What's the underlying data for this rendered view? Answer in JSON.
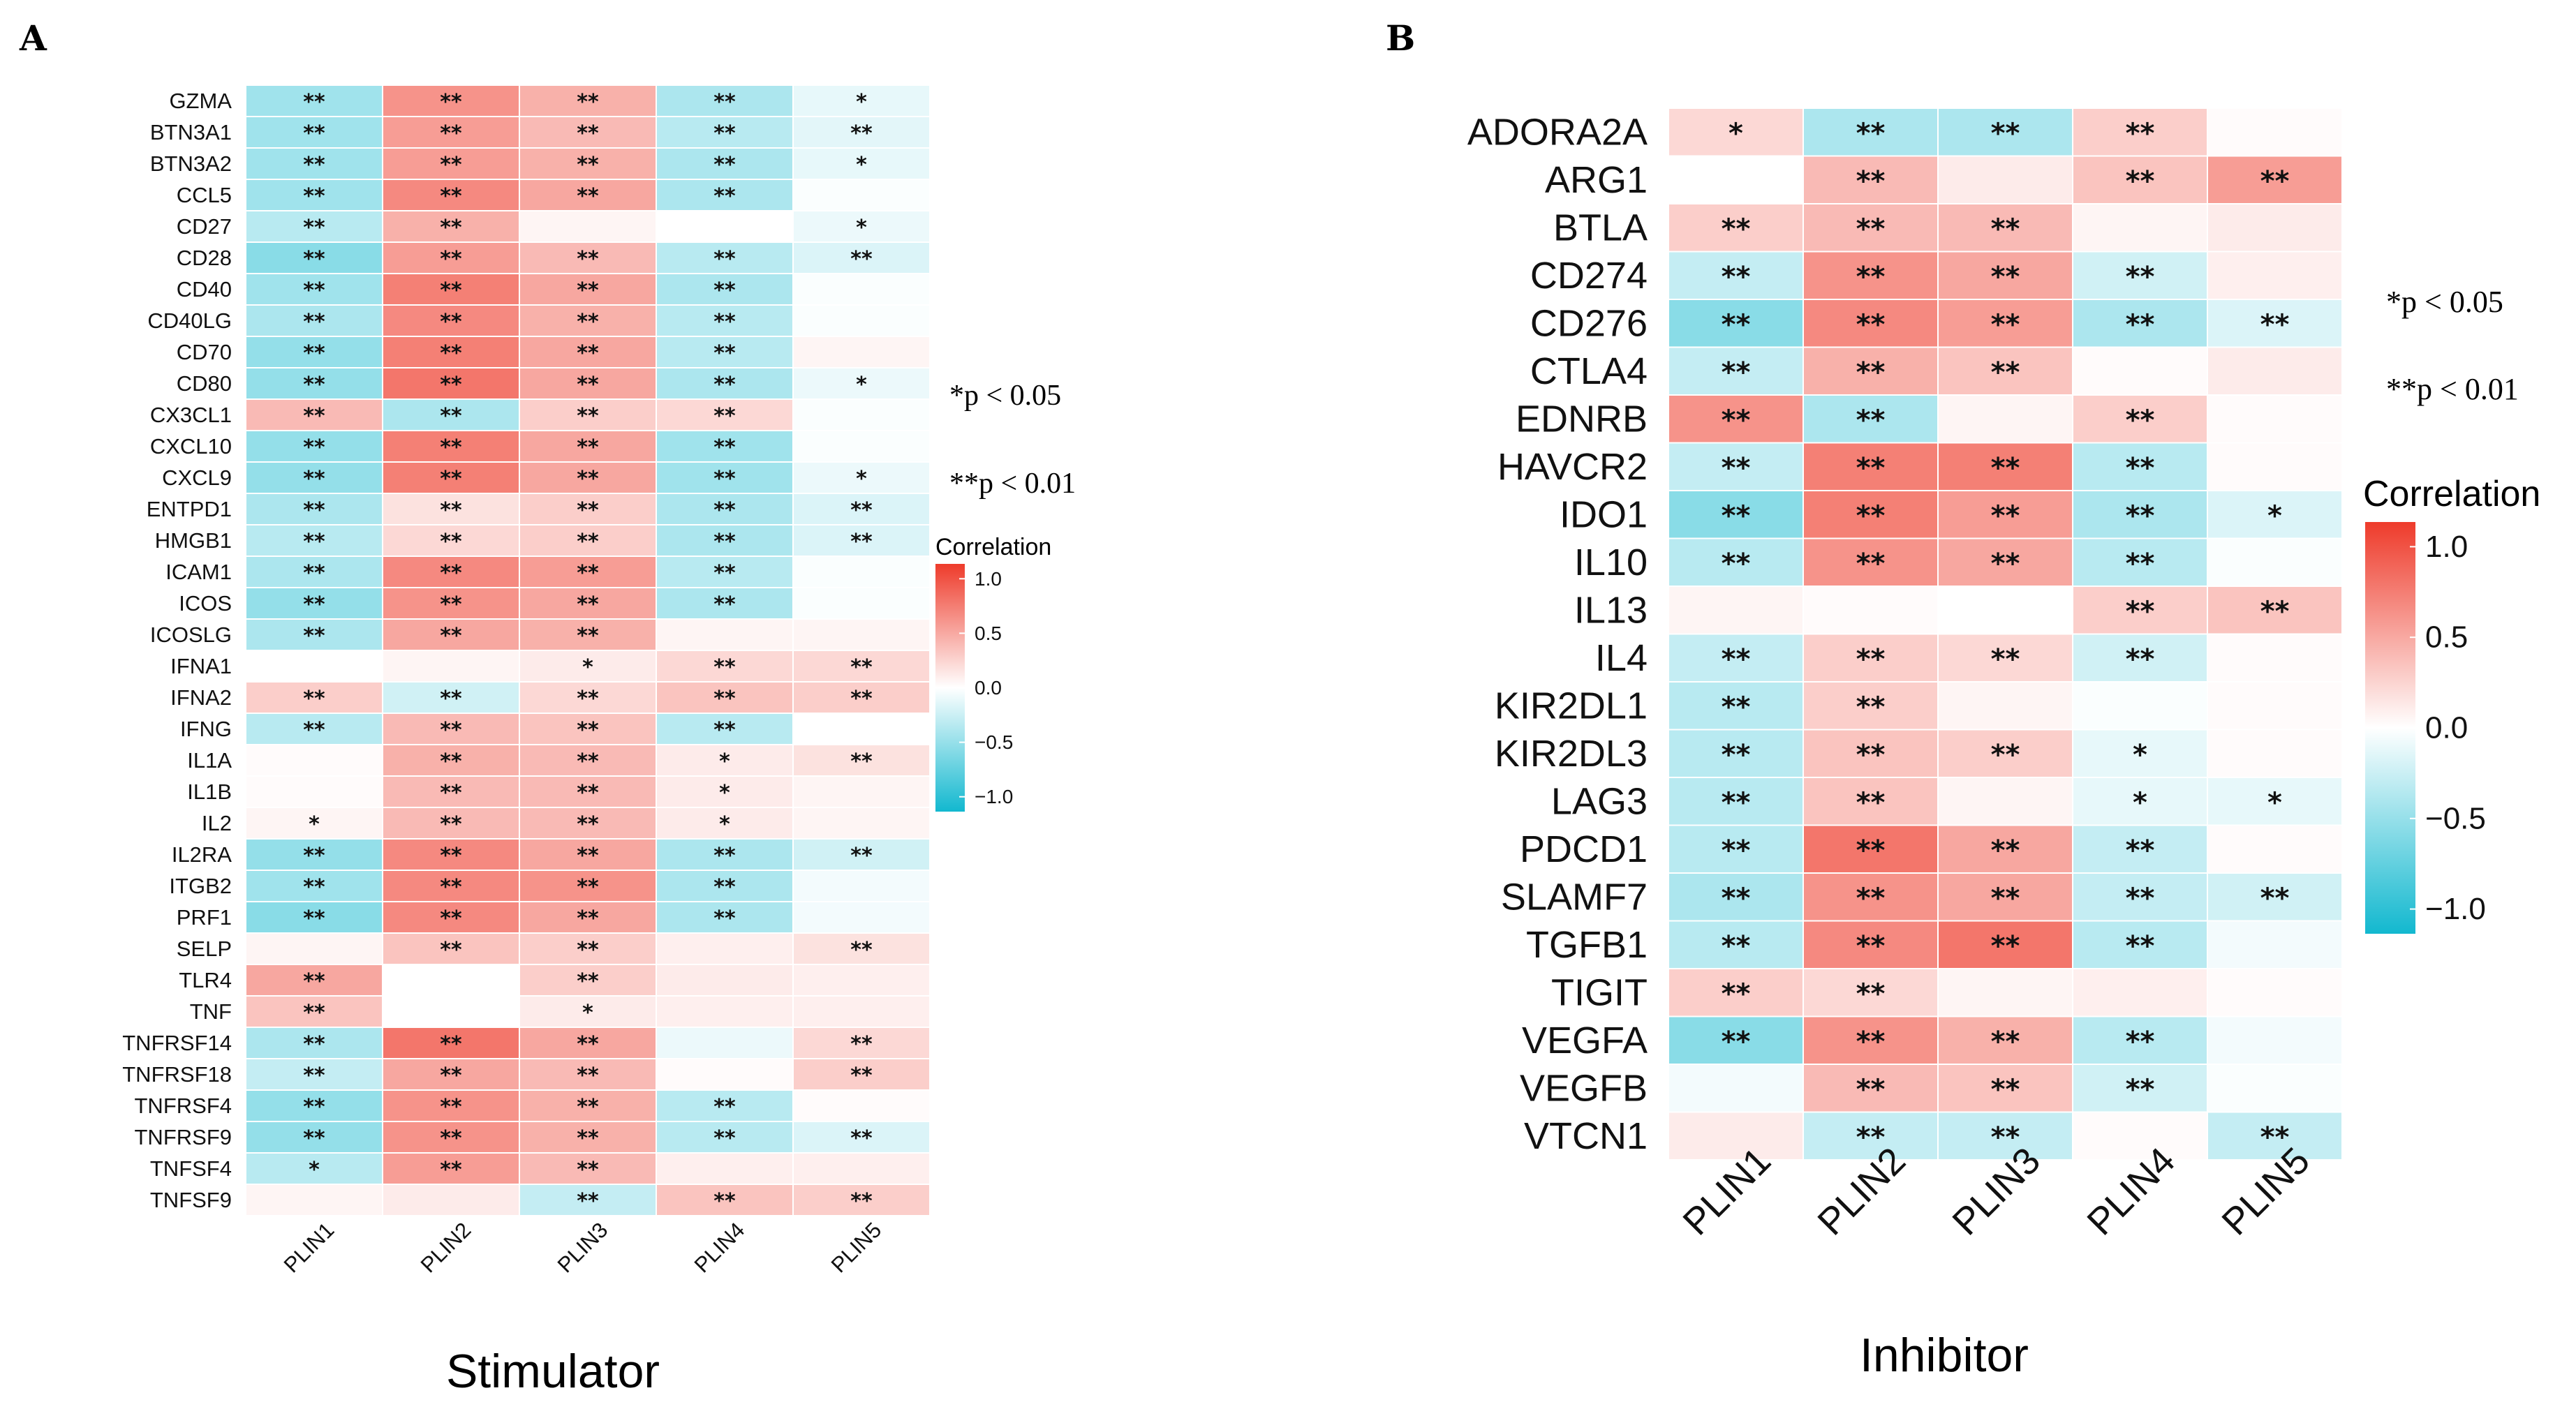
{
  "chart_data": [
    {
      "type": "heatmap",
      "panel_label": "A",
      "xlabel": "Stimulator",
      "columns": [
        "PLIN1",
        "PLIN2",
        "PLIN3",
        "PLIN4",
        "PLIN5"
      ],
      "rows": [
        "GZMA",
        "BTN3A1",
        "BTN3A2",
        "CCL5",
        "CD27",
        "CD28",
        "CD40",
        "CD40LG",
        "CD70",
        "CD80",
        "CX3CL1",
        "CXCL10",
        "CXCL9",
        "ENTPD1",
        "HMGB1",
        "ICAM1",
        "ICOS",
        "ICOSLG",
        "IFNA1",
        "IFNA2",
        "IFNG",
        "IL1A",
        "IL1B",
        "IL2",
        "IL2RA",
        "ITGB2",
        "PRF1",
        "SELP",
        "TLR4",
        "TNF",
        "TNFRSF14",
        "TNFRSF18",
        "TNFRSF4",
        "TNFRSF9",
        "TNFSF4",
        "TNFSF9"
      ],
      "values": [
        [
          -0.4,
          0.55,
          0.4,
          -0.35,
          -0.1
        ],
        [
          -0.4,
          0.5,
          0.35,
          -0.3,
          -0.12
        ],
        [
          -0.4,
          0.5,
          0.4,
          -0.35,
          -0.1
        ],
        [
          -0.4,
          0.6,
          0.45,
          -0.35,
          -0.02
        ],
        [
          -0.3,
          0.4,
          0.05,
          0.0,
          -0.08
        ],
        [
          -0.5,
          0.5,
          0.35,
          -0.3,
          -0.15
        ],
        [
          -0.4,
          0.65,
          0.45,
          -0.35,
          -0.02
        ],
        [
          -0.35,
          0.6,
          0.4,
          -0.3,
          -0.02
        ],
        [
          -0.45,
          0.65,
          0.45,
          -0.3,
          0.05
        ],
        [
          -0.45,
          0.7,
          0.45,
          -0.35,
          -0.08
        ],
        [
          0.35,
          -0.35,
          0.25,
          0.2,
          -0.02
        ],
        [
          -0.45,
          0.65,
          0.45,
          -0.4,
          -0.02
        ],
        [
          -0.45,
          0.65,
          0.45,
          -0.4,
          -0.08
        ],
        [
          -0.35,
          0.15,
          0.25,
          -0.35,
          -0.15
        ],
        [
          -0.3,
          0.2,
          0.25,
          -0.35,
          -0.15
        ],
        [
          -0.35,
          0.6,
          0.5,
          -0.3,
          -0.02
        ],
        [
          -0.45,
          0.55,
          0.45,
          -0.35,
          -0.02
        ],
        [
          -0.35,
          0.45,
          0.4,
          0.05,
          0.05
        ],
        [
          0.0,
          0.05,
          0.1,
          0.2,
          0.2
        ],
        [
          0.25,
          -0.2,
          0.2,
          0.3,
          0.25
        ],
        [
          -0.3,
          0.35,
          0.3,
          -0.3,
          0.0
        ],
        [
          0.02,
          0.4,
          0.35,
          0.1,
          0.15
        ],
        [
          0.02,
          0.35,
          0.35,
          0.1,
          0.05
        ],
        [
          0.05,
          0.35,
          0.35,
          0.1,
          0.05
        ],
        [
          -0.45,
          0.6,
          0.45,
          -0.35,
          -0.2
        ],
        [
          -0.4,
          0.6,
          0.55,
          -0.35,
          -0.05
        ],
        [
          -0.5,
          0.6,
          0.45,
          -0.35,
          -0.05
        ],
        [
          0.05,
          0.3,
          0.25,
          0.08,
          0.15
        ],
        [
          0.45,
          0.0,
          0.25,
          0.1,
          0.08
        ],
        [
          0.3,
          0.0,
          0.1,
          0.08,
          0.08
        ],
        [
          -0.35,
          0.7,
          0.45,
          -0.08,
          0.2
        ],
        [
          -0.25,
          0.45,
          0.35,
          0.02,
          0.25
        ],
        [
          -0.45,
          0.55,
          0.4,
          -0.3,
          0.02
        ],
        [
          -0.45,
          0.55,
          0.4,
          -0.3,
          -0.15
        ],
        [
          -0.3,
          0.5,
          0.35,
          0.08,
          0.08
        ],
        [
          0.05,
          0.1,
          -0.25,
          0.3,
          0.25
        ]
      ],
      "stars": [
        [
          "**",
          "**",
          "**",
          "**",
          "*"
        ],
        [
          "**",
          "**",
          "**",
          "**",
          "**"
        ],
        [
          "**",
          "**",
          "**",
          "**",
          "*"
        ],
        [
          "**",
          "**",
          "**",
          "**",
          ""
        ],
        [
          "**",
          "**",
          "",
          "",
          "*"
        ],
        [
          "**",
          "**",
          "**",
          "**",
          "**"
        ],
        [
          "**",
          "**",
          "**",
          "**",
          ""
        ],
        [
          "**",
          "**",
          "**",
          "**",
          ""
        ],
        [
          "**",
          "**",
          "**",
          "**",
          ""
        ],
        [
          "**",
          "**",
          "**",
          "**",
          "*"
        ],
        [
          "**",
          "**",
          "**",
          "**",
          ""
        ],
        [
          "**",
          "**",
          "**",
          "**",
          ""
        ],
        [
          "**",
          "**",
          "**",
          "**",
          "*"
        ],
        [
          "**",
          "**",
          "**",
          "**",
          "**"
        ],
        [
          "**",
          "**",
          "**",
          "**",
          "**"
        ],
        [
          "**",
          "**",
          "**",
          "**",
          ""
        ],
        [
          "**",
          "**",
          "**",
          "**",
          ""
        ],
        [
          "**",
          "**",
          "**",
          "",
          ""
        ],
        [
          "",
          "",
          "*",
          "**",
          "**"
        ],
        [
          "**",
          "**",
          "**",
          "**",
          "**"
        ],
        [
          "**",
          "**",
          "**",
          "**",
          ""
        ],
        [
          "",
          "**",
          "**",
          "*",
          "**"
        ],
        [
          "",
          "**",
          "**",
          "*",
          ""
        ],
        [
          "*",
          "**",
          "**",
          "*",
          ""
        ],
        [
          "**",
          "**",
          "**",
          "**",
          "**"
        ],
        [
          "**",
          "**",
          "**",
          "**",
          ""
        ],
        [
          "**",
          "**",
          "**",
          "**",
          ""
        ],
        [
          "",
          "**",
          "**",
          "",
          "**"
        ],
        [
          "**",
          "",
          "**",
          "",
          ""
        ],
        [
          "**",
          "",
          "*",
          "",
          ""
        ],
        [
          "**",
          "**",
          "**",
          "",
          "**"
        ],
        [
          "**",
          "**",
          "**",
          "",
          "**"
        ],
        [
          "**",
          "**",
          "**",
          "**",
          ""
        ],
        [
          "**",
          "**",
          "**",
          "**",
          "**"
        ],
        [
          "*",
          "**",
          "**",
          "",
          ""
        ],
        [
          "",
          "",
          "**",
          "**",
          "**"
        ]
      ],
      "significance_notes": [
        "*p < 0.05",
        "**p < 0.01"
      ],
      "legend": {
        "title": "Correlation",
        "ticks": [
          "1.0",
          "0.5",
          "0.0",
          "−0.5",
          "−1.0"
        ],
        "range": [
          -1.0,
          1.0
        ]
      },
      "colors": {
        "high": "#ee3b2b",
        "mid": "#ffffff",
        "low": "#12b8cf"
      }
    },
    {
      "type": "heatmap",
      "panel_label": "B",
      "xlabel": "Inhibitor",
      "columns": [
        "PLIN1",
        "PLIN2",
        "PLIN3",
        "PLIN4",
        "PLIN5"
      ],
      "rows": [
        "ADORA2A",
        "ARG1",
        "BTLA",
        "CD274",
        "CD276",
        "CTLA4",
        "EDNRB",
        "HAVCR2",
        "IDO1",
        "IL10",
        "IL13",
        "IL4",
        "KIR2DL1",
        "KIR2DL3",
        "LAG3",
        "PDCD1",
        "SLAMF7",
        "TGFB1",
        "TIGIT",
        "VEGFA",
        "VEGFB",
        "VTCN1"
      ],
      "values": [
        [
          0.2,
          -0.35,
          -0.35,
          0.25,
          0.02
        ],
        [
          0.0,
          0.35,
          0.1,
          0.3,
          0.5
        ],
        [
          0.25,
          0.35,
          0.35,
          0.05,
          0.1
        ],
        [
          -0.25,
          0.55,
          0.45,
          -0.2,
          0.08
        ],
        [
          -0.5,
          0.6,
          0.5,
          -0.35,
          -0.15
        ],
        [
          -0.25,
          0.4,
          0.3,
          0.02,
          0.1
        ],
        [
          0.55,
          -0.35,
          0.05,
          0.25,
          0.02
        ],
        [
          -0.25,
          0.65,
          0.65,
          -0.3,
          0.02
        ],
        [
          -0.5,
          0.65,
          0.5,
          -0.35,
          -0.15
        ],
        [
          -0.3,
          0.55,
          0.45,
          -0.3,
          -0.02
        ],
        [
          0.05,
          0.02,
          0.0,
          0.25,
          0.3
        ],
        [
          -0.25,
          0.25,
          0.2,
          -0.2,
          0.02
        ],
        [
          -0.3,
          0.25,
          0.05,
          -0.02,
          0.02
        ],
        [
          -0.3,
          0.3,
          0.25,
          -0.1,
          0.02
        ],
        [
          -0.3,
          0.3,
          0.05,
          -0.1,
          -0.1
        ],
        [
          -0.3,
          0.7,
          0.45,
          -0.25,
          0.02
        ],
        [
          -0.35,
          0.55,
          0.45,
          -0.25,
          -0.2
        ],
        [
          -0.3,
          0.6,
          0.7,
          -0.3,
          -0.05
        ],
        [
          0.25,
          0.2,
          0.05,
          0.08,
          0.02
        ],
        [
          -0.5,
          0.55,
          0.4,
          -0.3,
          -0.05
        ],
        [
          -0.05,
          0.35,
          0.3,
          -0.2,
          -0.02
        ],
        [
          0.1,
          -0.25,
          -0.25,
          0.02,
          -0.25
        ]
      ],
      "stars": [
        [
          "*",
          "**",
          "**",
          "**",
          ""
        ],
        [
          "",
          "**",
          "",
          "**",
          "**"
        ],
        [
          "**",
          "**",
          "**",
          "",
          ""
        ],
        [
          "**",
          "**",
          "**",
          "**",
          ""
        ],
        [
          "**",
          "**",
          "**",
          "**",
          "**"
        ],
        [
          "**",
          "**",
          "**",
          "",
          ""
        ],
        [
          "**",
          "**",
          "",
          "**",
          ""
        ],
        [
          "**",
          "**",
          "**",
          "**",
          ""
        ],
        [
          "**",
          "**",
          "**",
          "**",
          "*"
        ],
        [
          "**",
          "**",
          "**",
          "**",
          ""
        ],
        [
          "",
          "",
          "",
          "**",
          "**"
        ],
        [
          "**",
          "**",
          "**",
          "**",
          ""
        ],
        [
          "**",
          "**",
          "",
          "",
          ""
        ],
        [
          "**",
          "**",
          "**",
          "*",
          ""
        ],
        [
          "**",
          "**",
          "",
          "*",
          "*"
        ],
        [
          "**",
          "**",
          "**",
          "**",
          ""
        ],
        [
          "**",
          "**",
          "**",
          "**",
          "**"
        ],
        [
          "**",
          "**",
          "**",
          "**",
          ""
        ],
        [
          "**",
          "**",
          "",
          "",
          ""
        ],
        [
          "**",
          "**",
          "**",
          "**",
          ""
        ],
        [
          "",
          "**",
          "**",
          "**",
          ""
        ],
        [
          "",
          "**",
          "**",
          "",
          "**"
        ]
      ],
      "significance_notes": [
        "*p < 0.05",
        "**p < 0.01"
      ],
      "legend": {
        "title": "Correlation",
        "ticks": [
          "1.0",
          "0.5",
          "0.0",
          "−0.5",
          "−1.0"
        ],
        "range": [
          -1.0,
          1.0
        ]
      },
      "colors": {
        "high": "#ee3b2b",
        "mid": "#ffffff",
        "low": "#12b8cf"
      }
    }
  ]
}
